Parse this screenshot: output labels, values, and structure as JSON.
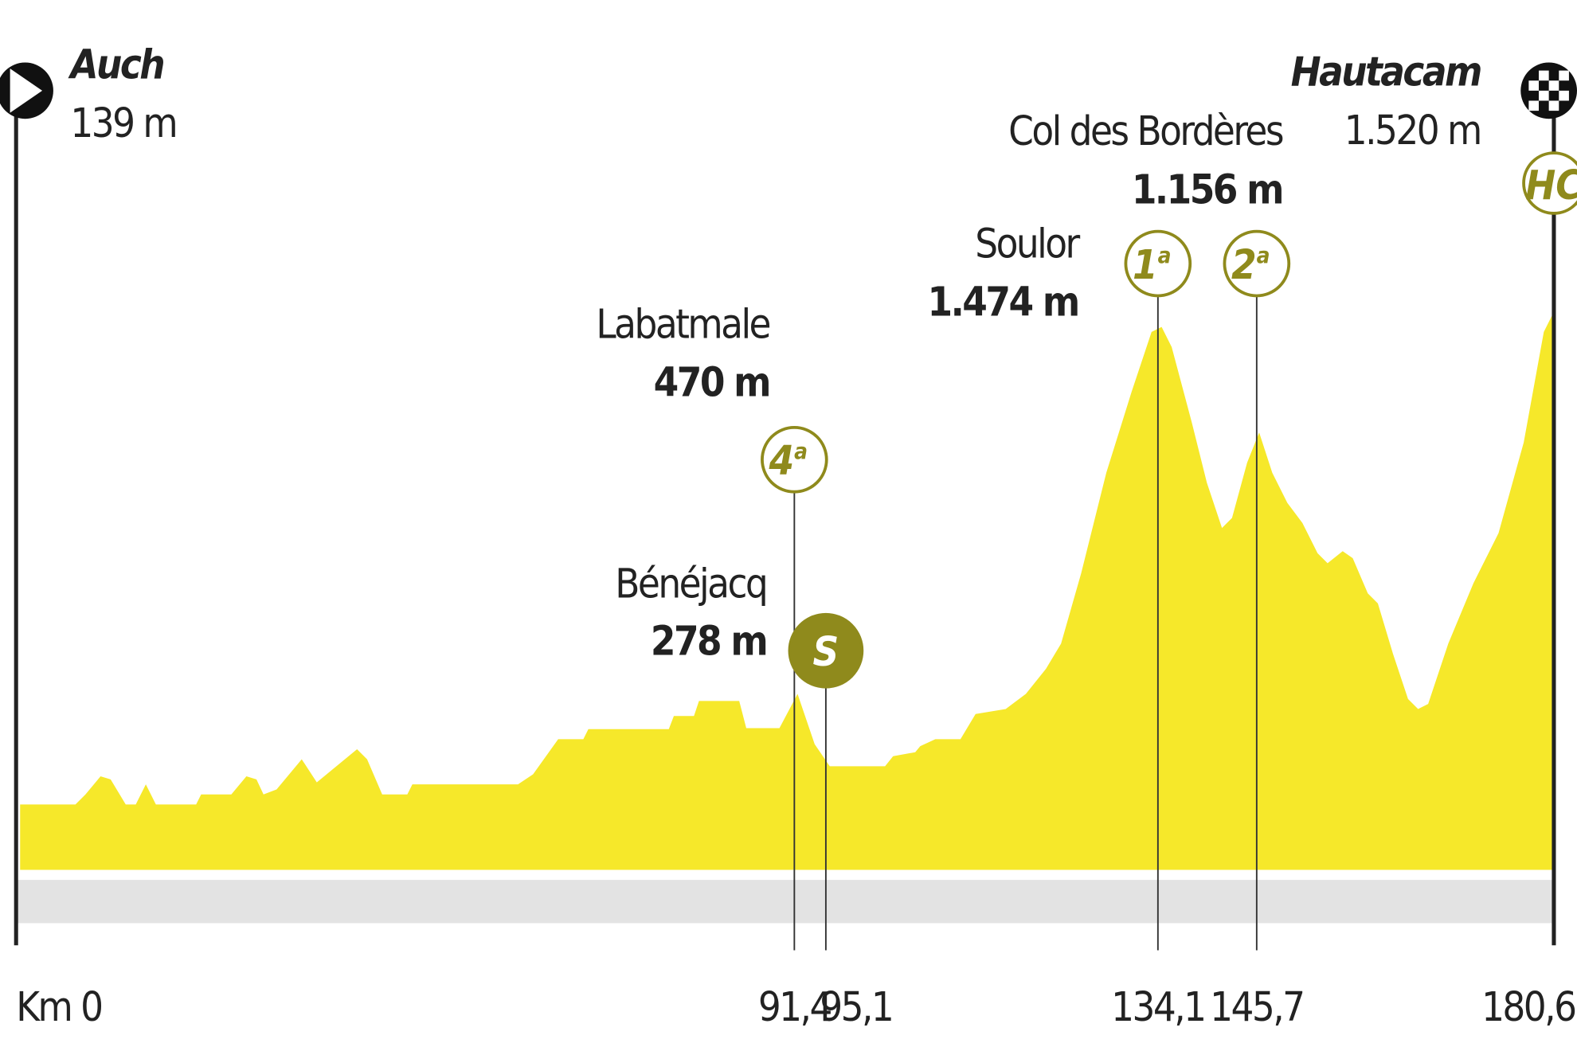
{
  "start": {
    "name": "Auch",
    "altitude": "139 m",
    "km": "Km 0"
  },
  "finish": {
    "name": "Hautacam",
    "altitude": "1.520 m",
    "km": "180,6",
    "category": "HC"
  },
  "points": [
    {
      "name": "Labatmale",
      "altitude": "470 m",
      "km": "91,4",
      "category": "4",
      "suffix": "a"
    },
    {
      "name": "Bénéjacq",
      "altitude": "278 m",
      "km": "95,1",
      "category": "S"
    },
    {
      "name": "Soulor",
      "altitude": "1.474 m",
      "km": "134,1",
      "category": "1",
      "suffix": "a"
    },
    {
      "name": "Col des Bordères",
      "altitude": "1.156 m",
      "km": "145,7",
      "category": "2",
      "suffix": "a"
    }
  ]
}
